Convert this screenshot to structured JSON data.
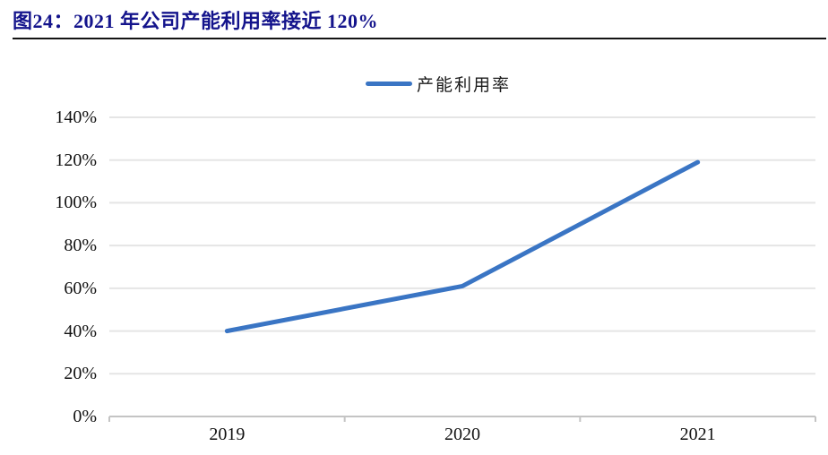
{
  "figure": {
    "title": "图24：2021 年公司产能利用率接近 120%",
    "title_color": "#14148C"
  },
  "chart_data": {
    "type": "line",
    "title": "图24：2021 年公司产能利用率接近 120%",
    "categories": [
      "2019",
      "2020",
      "2021"
    ],
    "series": [
      {
        "name": "产能利用率",
        "values": [
          40,
          61,
          119
        ]
      }
    ],
    "unit": "%",
    "ylim": [
      0,
      140
    ],
    "ytick_step": 20,
    "yticks": [
      "0%",
      "20%",
      "40%",
      "60%",
      "80%",
      "100%",
      "120%",
      "140%"
    ],
    "grid": true,
    "legend_position": "top-center",
    "line_color": "#3A75C4",
    "grid_color": "#E5E5E5",
    "axis_color": "#C4C4C4"
  }
}
